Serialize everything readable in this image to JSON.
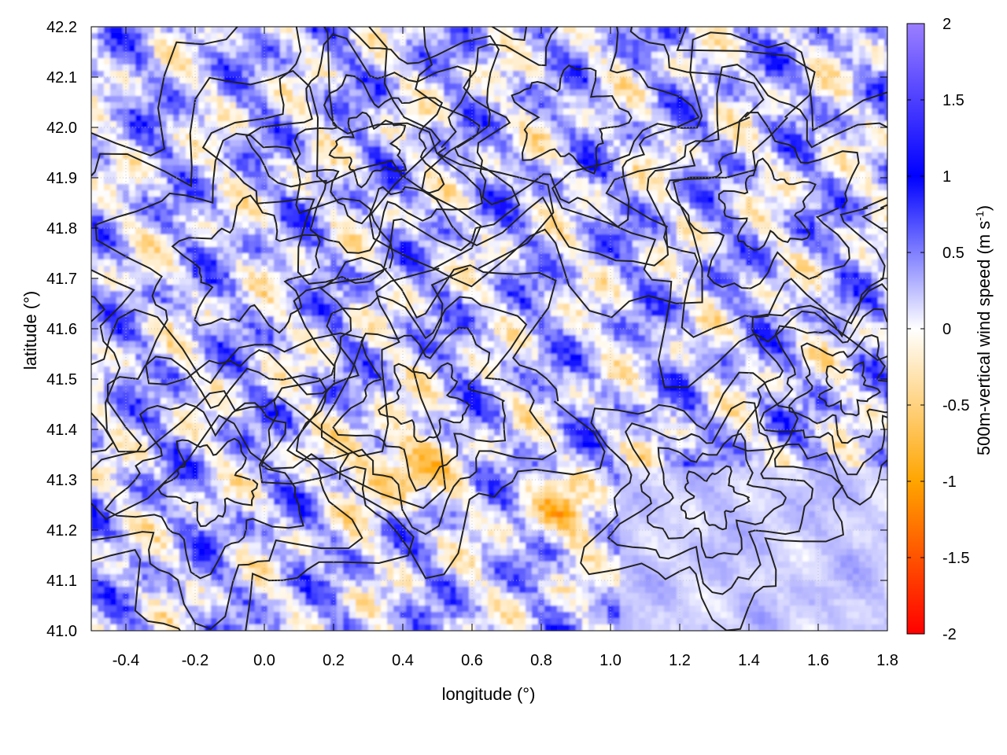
{
  "chart_data": {
    "type": "heatmap",
    "title": "",
    "xlabel": "longitude (°)",
    "ylabel": "latitude (°)",
    "xlim": [
      -0.5,
      1.8
    ],
    "ylim": [
      41.0,
      42.2
    ],
    "x_ticks": [
      -0.4,
      -0.2,
      0.0,
      0.2,
      0.4,
      0.6,
      0.8,
      1.0,
      1.2,
      1.4,
      1.6,
      1.8
    ],
    "x_tick_labels": [
      "-0.4",
      "-0.2",
      "0.0",
      "0.2",
      "0.4",
      "0.6",
      "0.8",
      "1.0",
      "1.2",
      "1.4",
      "1.6",
      "1.8"
    ],
    "y_ticks": [
      41.0,
      41.1,
      41.2,
      41.3,
      41.4,
      41.5,
      41.6,
      41.7,
      41.8,
      41.9,
      42.0,
      42.1,
      42.2
    ],
    "y_tick_labels": [
      "41.0",
      "41.1",
      "41.2",
      "41.3",
      "41.4",
      "41.5",
      "41.6",
      "41.7",
      "41.8",
      "41.9",
      "42.0",
      "42.1",
      "42.2"
    ],
    "grid": true,
    "colorbar": {
      "label_main": "500m-vertical wind speed (m s",
      "label_sup": "-1",
      "label_end": ")",
      "range": [
        -2,
        2
      ],
      "ticks": [
        2,
        1.5,
        1,
        0.5,
        0,
        -0.5,
        -1,
        -1.5,
        -2
      ],
      "tick_labels": [
        "2",
        "1.5",
        "1",
        "0.5",
        "0",
        "-0.5",
        "-1",
        "-1.5",
        "-2"
      ],
      "stops": [
        {
          "value": -2,
          "color": "#ff0000"
        },
        {
          "value": -1,
          "color": "#ffa500"
        },
        {
          "value": 0,
          "color": "#ffffff"
        },
        {
          "value": 1,
          "color": "#0000ff"
        },
        {
          "value": 2,
          "color": "#9b7fff"
        }
      ]
    },
    "contour_color": "#222222"
  }
}
